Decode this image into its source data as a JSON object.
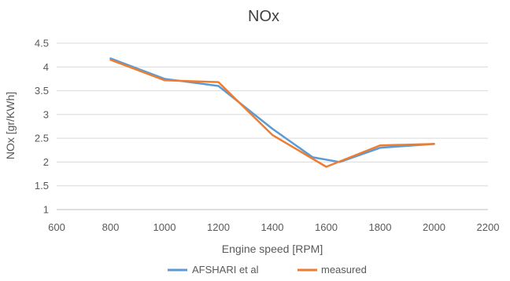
{
  "chart_data": {
    "type": "line",
    "title": "NOx",
    "xlabel": "Engine speed [RPM]",
    "ylabel": "NOx [gr/KWh]",
    "xlim": [
      600,
      2200
    ],
    "ylim": [
      1,
      4.5
    ],
    "xticks": [
      600,
      800,
      1000,
      1200,
      1400,
      1600,
      1800,
      2000,
      2200
    ],
    "yticks": [
      1,
      1.5,
      2,
      2.5,
      3,
      3.5,
      4,
      4.5
    ],
    "grid": true,
    "legend_position": "bottom",
    "series": [
      {
        "name": "AFSHARI et al",
        "color": "#5b9bd5",
        "points": [
          {
            "x": 800,
            "y": 4.18
          },
          {
            "x": 1000,
            "y": 3.75
          },
          {
            "x": 1200,
            "y": 3.6
          },
          {
            "x": 1400,
            "y": 2.7
          },
          {
            "x": 1550,
            "y": 2.1
          },
          {
            "x": 1650,
            "y": 2.0
          },
          {
            "x": 1800,
            "y": 2.3
          },
          {
            "x": 2000,
            "y": 2.38
          }
        ]
      },
      {
        "name": "measured",
        "color": "#ed7d31",
        "points": [
          {
            "x": 800,
            "y": 4.15
          },
          {
            "x": 1000,
            "y": 3.72
          },
          {
            "x": 1200,
            "y": 3.68
          },
          {
            "x": 1400,
            "y": 2.57
          },
          {
            "x": 1600,
            "y": 1.9
          },
          {
            "x": 1800,
            "y": 2.35
          },
          {
            "x": 2000,
            "y": 2.38
          }
        ]
      }
    ]
  }
}
